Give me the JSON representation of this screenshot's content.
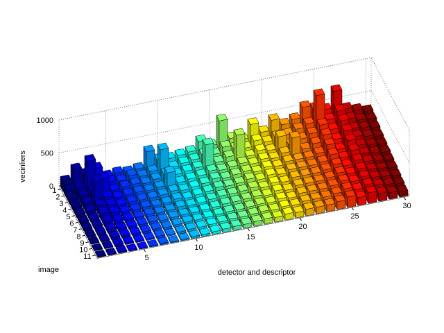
{
  "chart_data": {
    "type": "bar3",
    "zlabel": "vecinliers",
    "xlabel": "detector and descriptor",
    "ylabel": "image",
    "colormap": "jet",
    "grid": true,
    "xlim": [
      0.5,
      30.5
    ],
    "ylim": [
      0.5,
      11.5
    ],
    "zlim": [
      0,
      1000
    ],
    "xticks": [
      5,
      10,
      15,
      20,
      25,
      30
    ],
    "yticks": [
      1,
      2,
      3,
      4,
      5,
      6,
      7,
      8,
      9,
      10,
      11
    ],
    "zticks": [
      0,
      500,
      1000
    ],
    "values": [
      [
        150,
        120,
        80,
        60,
        50,
        40,
        30,
        20,
        15,
        10,
        10
      ],
      [
        300,
        120,
        100,
        90,
        70,
        50,
        40,
        30,
        20,
        15,
        10
      ],
      [
        200,
        500,
        150,
        400,
        120,
        100,
        80,
        60,
        40,
        30,
        20
      ],
      [
        250,
        150,
        300,
        120,
        100,
        80,
        60,
        40,
        30,
        20,
        10
      ],
      [
        100,
        120,
        90,
        80,
        70,
        60,
        50,
        40,
        30,
        20,
        10
      ],
      [
        120,
        100,
        110,
        90,
        80,
        60,
        50,
        40,
        30,
        20,
        10
      ],
      [
        100,
        150,
        120,
        100,
        80,
        70,
        60,
        50,
        40,
        30,
        20
      ],
      [
        120,
        110,
        100,
        90,
        80,
        60,
        50,
        40,
        30,
        20,
        10
      ],
      [
        350,
        150,
        130,
        110,
        90,
        70,
        60,
        50,
        40,
        30,
        20
      ],
      [
        200,
        450,
        180,
        300,
        120,
        100,
        80,
        60,
        50,
        40,
        30
      ],
      [
        180,
        150,
        140,
        120,
        100,
        80,
        70,
        60,
        50,
        40,
        30
      ],
      [
        200,
        180,
        160,
        140,
        120,
        100,
        80,
        70,
        60,
        50,
        40
      ],
      [
        220,
        200,
        180,
        160,
        140,
        120,
        100,
        80,
        70,
        60,
        50
      ],
      [
        350,
        250,
        500,
        200,
        180,
        150,
        120,
        100,
        80,
        70,
        60
      ],
      [
        250,
        220,
        200,
        180,
        160,
        140,
        120,
        100,
        80,
        70,
        60
      ],
      [
        600,
        300,
        250,
        200,
        180,
        150,
        130,
        110,
        90,
        80,
        70
      ],
      [
        300,
        250,
        550,
        220,
        200,
        180,
        150,
        120,
        100,
        90,
        80
      ],
      [
        250,
        220,
        200,
        180,
        160,
        140,
        120,
        100,
        90,
        80,
        70
      ],
      [
        450,
        300,
        250,
        220,
        200,
        180,
        160,
        140,
        120,
        100,
        90
      ],
      [
        300,
        250,
        220,
        200,
        180,
        160,
        140,
        120,
        100,
        90,
        80
      ],
      [
        450,
        300,
        400,
        250,
        220,
        200,
        180,
        160,
        140,
        120,
        100
      ],
      [
        350,
        300,
        250,
        450,
        220,
        200,
        180,
        160,
        140,
        120,
        100
      ],
      [
        400,
        350,
        300,
        250,
        220,
        200,
        180,
        160,
        140,
        120,
        100
      ],
      [
        550,
        400,
        350,
        300,
        250,
        220,
        200,
        180,
        160,
        140,
        120
      ],
      [
        500,
        800,
        450,
        400,
        350,
        300,
        250,
        220,
        200,
        180,
        160
      ],
      [
        450,
        400,
        350,
        300,
        250,
        220,
        200,
        180,
        160,
        140,
        120
      ],
      [
        700,
        500,
        450,
        400,
        350,
        300,
        250,
        220,
        200,
        180,
        160
      ],
      [
        400,
        350,
        300,
        280,
        250,
        220,
        200,
        180,
        160,
        140,
        120
      ],
      [
        350,
        300,
        280,
        250,
        220,
        200,
        180,
        160,
        140,
        120,
        100
      ],
      [
        300,
        280,
        250,
        220,
        200,
        180,
        160,
        140,
        120,
        100,
        80
      ]
    ]
  }
}
